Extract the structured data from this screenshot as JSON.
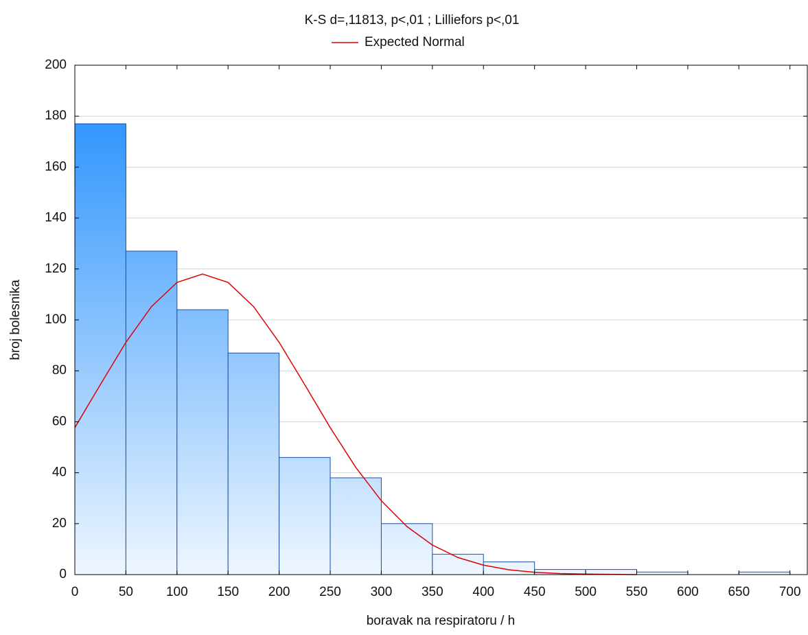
{
  "chart_data": {
    "type": "histogram",
    "title": "K-S d=,11813, p<,01 ; Lilliefors p<,01",
    "x_label": "boravak na respiratoru / h",
    "y_label": "broj bolesnika",
    "bins": [
      0,
      50,
      100,
      150,
      200,
      250,
      300,
      350,
      400,
      450,
      500,
      550,
      600,
      650,
      700
    ],
    "counts": [
      177,
      127,
      104,
      87,
      46,
      38,
      20,
      8,
      5,
      2,
      2,
      1,
      0,
      1
    ],
    "color": "#1a8afc",
    "edge_color": "#1f4fa8",
    "curve": {
      "name": "Expected Normal",
      "color": "#e00000",
      "x": [
        0,
        25,
        50,
        75,
        100,
        125,
        150,
        175,
        200,
        225,
        250,
        275,
        300,
        325,
        350,
        375,
        400,
        425,
        450,
        475,
        500,
        525,
        550
      ],
      "values": [
        57.7,
        74.6,
        91.2,
        105.2,
        114.7,
        118,
        114.7,
        105.2,
        91.2,
        74.6,
        57.7,
        42.1,
        29.0,
        18.9,
        11.6,
        6.7,
        3.7,
        1.9,
        0.9,
        0.4,
        0.2,
        0.1,
        0.0
      ]
    },
    "xlim": [
      0,
      717
    ],
    "ylim": [
      0,
      200
    ],
    "xticks": [
      0,
      50,
      100,
      150,
      200,
      250,
      300,
      350,
      400,
      450,
      500,
      550,
      600,
      650,
      700
    ],
    "yticks": [
      0,
      20,
      40,
      60,
      80,
      100,
      120,
      140,
      160,
      180,
      200
    ],
    "grid": true
  }
}
